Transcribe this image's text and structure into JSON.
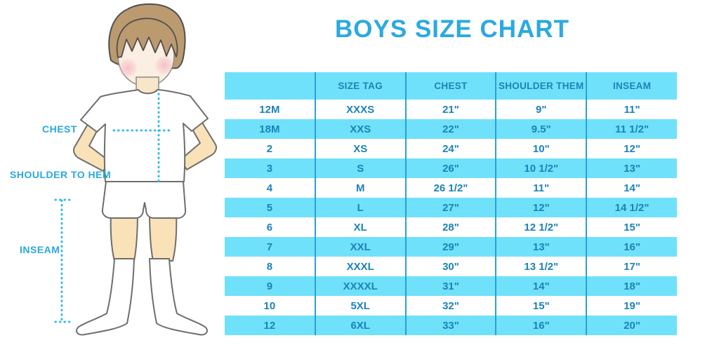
{
  "title": "BOYS SIZE CHART",
  "diagram": {
    "chest_label": "CHEST",
    "shoulder_label": "SHOULDER TO HEM",
    "inseam_label": "INSEAM"
  },
  "table": {
    "headers": [
      "",
      "SIZE TAG",
      "CHEST",
      "SHOULDER THEM",
      "INSEAM"
    ],
    "rows": [
      [
        "12M",
        "XXXS",
        "21\"",
        "9\"",
        "11\""
      ],
      [
        "18M",
        "XXS",
        "22\"",
        "9.5\"",
        "11 1/2\""
      ],
      [
        "2",
        "XS",
        "24\"",
        "10\"",
        "12\""
      ],
      [
        "3",
        "S",
        "26\"",
        "10 1/2\"",
        "13\""
      ],
      [
        "4",
        "M",
        "26 1/2\"",
        "11\"",
        "14\""
      ],
      [
        "5",
        "L",
        "27\"",
        "12\"",
        "14 1/2\""
      ],
      [
        "6",
        "XL",
        "28\"",
        "12 1/2\"",
        "15\""
      ],
      [
        "7",
        "XXL",
        "29\"",
        "13\"",
        "16\""
      ],
      [
        "8",
        "XXXL",
        "30\"",
        "13 1/2\"",
        "17\""
      ],
      [
        "9",
        "XXXXL",
        "31\"",
        "14\"",
        "18\""
      ],
      [
        "10",
        "5XL",
        "32\"",
        "15\"",
        "19\""
      ],
      [
        "12",
        "6XL",
        "33\"",
        "16\"",
        "20\""
      ]
    ]
  },
  "colors": {
    "accent_blue": "#2BA9E1",
    "table_text_blue": "#1C82B8",
    "row_cyan": "#70E1FB",
    "grid_line_blue": "#2BA0D2",
    "dotted_line_cyan": "#2FB9F0",
    "hair_brown": "#BC9A70",
    "skin_tone": "#F9E2B7",
    "face_tone": "#FBEEE2",
    "cheek_pink": "#F5B8C6",
    "outline_gray": "#6E6E6E"
  }
}
